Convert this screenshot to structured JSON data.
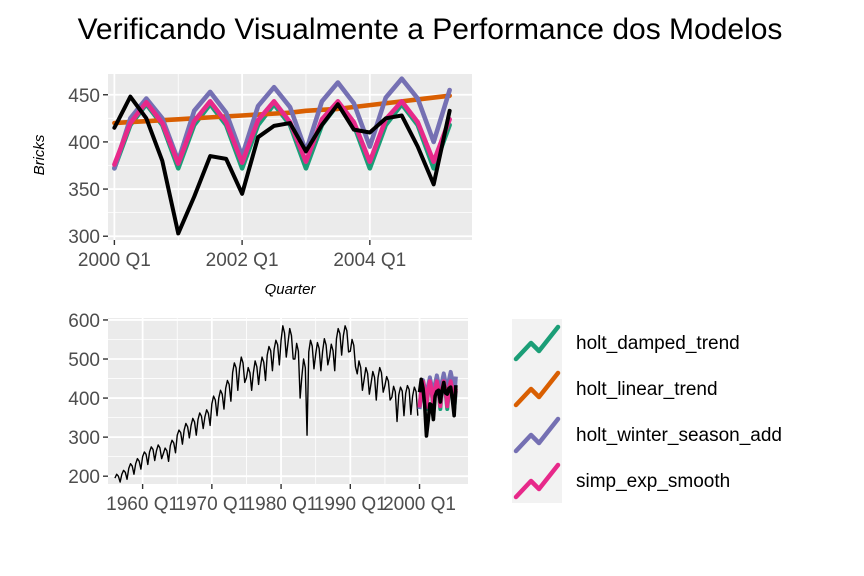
{
  "title": "Verificando Visualmente a Performance dos Modelos",
  "colors": {
    "holt_damped_trend": "#1b9e77",
    "holt_linear_trend": "#d95f02",
    "holt_winter_season_add": "#7570b3",
    "simp_exp_smooth": "#e7298a",
    "actual": "#000000",
    "panel": "#ebebeb",
    "grid": "#ffffff"
  },
  "legend": {
    "items": [
      {
        "key": "holt_damped_trend",
        "label": "holt_damped_trend"
      },
      {
        "key": "holt_linear_trend",
        "label": "holt_linear_trend"
      },
      {
        "key": "holt_winter_season_add",
        "label": "holt_winter_season_add"
      },
      {
        "key": "simp_exp_smooth",
        "label": "simp_exp_smooth"
      }
    ]
  },
  "chart_data": [
    {
      "type": "line",
      "ylabel": "Bricks",
      "xlabel": "Quarter",
      "xlim": [
        1999.9,
        2005.6
      ],
      "ylim": [
        296,
        472
      ],
      "x_ticks": [
        2000.0,
        2002.0,
        2004.0
      ],
      "x_tick_labels": [
        "2000 Q1",
        "2002 Q1",
        "2004 Q1"
      ],
      "y_ticks": [
        300,
        350,
        400,
        450
      ],
      "x": [
        2000.0,
        2000.25,
        2000.5,
        2000.75,
        2001.0,
        2001.25,
        2001.5,
        2001.75,
        2002.0,
        2002.25,
        2002.5,
        2002.75,
        2003.0,
        2003.25,
        2003.5,
        2003.75,
        2004.0,
        2004.25,
        2004.5,
        2004.75,
        2005.0,
        2005.25
      ],
      "series": [
        {
          "name": "holt_damped_trend",
          "values": [
            372,
            418,
            440,
            418,
            372,
            418,
            440,
            418,
            372,
            418,
            440,
            418,
            372,
            418,
            440,
            418,
            372,
            418,
            440,
            418,
            372,
            418
          ]
        },
        {
          "name": "holt_linear_trend",
          "values": [
            420,
            421,
            422,
            423,
            424,
            425,
            426,
            427,
            428,
            429,
            430,
            431,
            433,
            434,
            435,
            437,
            439,
            441,
            443,
            445,
            447,
            449
          ]
        },
        {
          "name": "holt_winter_season_add",
          "values": [
            372,
            425,
            446,
            425,
            380,
            433,
            453,
            431,
            385,
            438,
            458,
            437,
            390,
            443,
            463,
            441,
            395,
            447,
            467,
            446,
            400,
            455
          ]
        },
        {
          "name": "simp_exp_smooth",
          "values": [
            376,
            420,
            442,
            420,
            377,
            422,
            443,
            421,
            378,
            423,
            443,
            421,
            379,
            424,
            443,
            421,
            379,
            424,
            443,
            421,
            379,
            424
          ]
        },
        {
          "name": "actual",
          "values": [
            415,
            448,
            425,
            380,
            303,
            342,
            385,
            382,
            345,
            405,
            417,
            420,
            390,
            418,
            440,
            413,
            410,
            425,
            428,
            395,
            355,
            433
          ]
        }
      ]
    },
    {
      "type": "line",
      "xlim": [
        1955.0,
        2007.0
      ],
      "ylim": [
        180,
        605
      ],
      "x_ticks": [
        1960.0,
        1970.0,
        1980.0,
        1990.0,
        2000.0
      ],
      "x_tick_labels": [
        "1960 Q1",
        "1970 Q1",
        "1980 Q1",
        "1990 Q1",
        "2000 Q1"
      ],
      "y_ticks": [
        200,
        300,
        400,
        500,
        600
      ],
      "history_x": [
        1956.0,
        1957.0,
        1958.0,
        1959.0,
        1960.0,
        1961.0,
        1962.0,
        1963.0,
        1964.0,
        1965.0,
        1966.0,
        1967.0,
        1968.0,
        1969.0,
        1970.0,
        1971.0,
        1972.0,
        1973.0,
        1974.0,
        1975.0,
        1976.0,
        1977.0,
        1978.0,
        1979.0,
        1980.0,
        1981.0,
        1982.0,
        1983.0,
        1984.0,
        1985.0,
        1986.0,
        1987.0,
        1988.0,
        1989.0,
        1990.0,
        1991.0,
        1992.0,
        1993.0,
        1994.0,
        1995.0,
        1996.0,
        1997.0,
        1998.0,
        1999.0
      ],
      "history_values": [
        195,
        205,
        220,
        232,
        250,
        262,
        265,
        258,
        278,
        305,
        318,
        330,
        345,
        352,
        385,
        400,
        425,
        465,
        475,
        452,
        465,
        478,
        510,
        525,
        548,
        542,
        500,
        455,
        518,
        512,
        520,
        505,
        552,
        560,
        520,
        462,
        448,
        438,
        452,
        432,
        402,
        408,
        412,
        405
      ],
      "history_low": [
        185,
        192,
        205,
        218,
        230,
        240,
        245,
        238,
        260,
        282,
        298,
        305,
        322,
        330,
        355,
        372,
        392,
        420,
        440,
        420,
        435,
        445,
        470,
        485,
        505,
        500,
        400,
        305,
        475,
        470,
        485,
        470,
        510,
        518,
        480,
        420,
        410,
        395,
        415,
        395,
        340,
        355,
        358,
        355
      ],
      "history_high": [
        205,
        215,
        232,
        245,
        262,
        275,
        280,
        272,
        292,
        318,
        335,
        348,
        362,
        370,
        405,
        420,
        445,
        490,
        505,
        478,
        495,
        505,
        532,
        548,
        585,
        578,
        540,
        500,
        548,
        542,
        552,
        538,
        578,
        585,
        550,
        495,
        478,
        468,
        478,
        455,
        430,
        428,
        432,
        428
      ],
      "forecast_x": [
        2000.0,
        2000.25,
        2000.5,
        2000.75,
        2001.0,
        2001.25,
        2001.5,
        2001.75,
        2002.0,
        2002.25,
        2002.5,
        2002.75,
        2003.0,
        2003.25,
        2003.5,
        2003.75,
        2004.0,
        2004.25,
        2004.5,
        2004.75,
        2005.0,
        2005.25
      ],
      "series_ref": "same series as panel 1"
    }
  ]
}
